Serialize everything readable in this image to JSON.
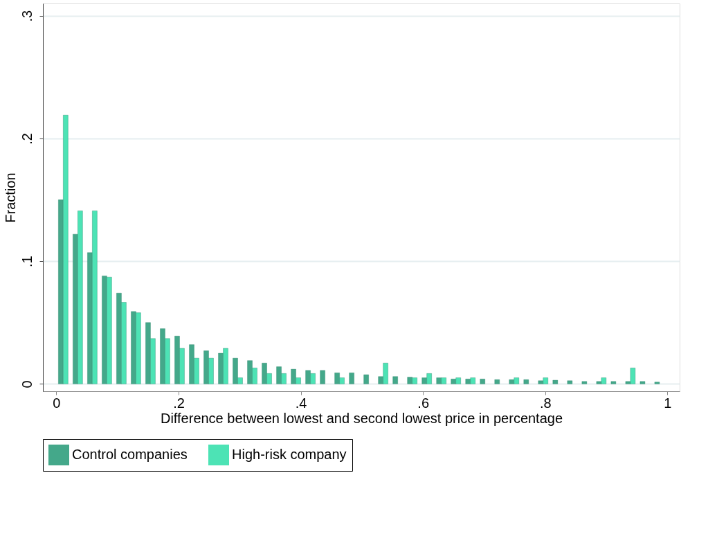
{
  "chart_data": {
    "type": "bar",
    "xlabel": "Difference between lowest and second lowest price in percentage",
    "ylabel": "Fraction",
    "xlim": [
      -0.022,
      1.02
    ],
    "ylim": [
      -0.006,
      0.31
    ],
    "xticks": [
      0,
      {
        "value": 0.2,
        "label": ".2"
      },
      {
        "value": 0.4,
        "label": ".4"
      },
      {
        "value": 0.6,
        "label": ".6"
      },
      {
        "value": 0.8,
        "label": ".8"
      },
      1
    ],
    "yticks": [
      0,
      {
        "value": 0.1,
        "label": ".1"
      },
      {
        "value": 0.2,
        "label": ".2"
      },
      {
        "value": 0.3,
        "label": ".3"
      }
    ],
    "grid": "y",
    "legend": "bottom",
    "series": [
      {
        "name": "Control companies",
        "color": "#44a88a",
        "x": [
          0.0073,
          0.0311,
          0.0549,
          0.0787,
          0.1025,
          0.1263,
          0.1501,
          0.1739,
          0.1977,
          0.2215,
          0.2453,
          0.2691,
          0.2929,
          0.3167,
          0.3405,
          0.3643,
          0.3881,
          0.4119,
          0.4357,
          0.4595,
          0.4833,
          0.5071,
          0.5309,
          0.5547,
          0.5785,
          0.6023,
          0.6261,
          0.6499,
          0.6737,
          0.6975,
          0.7213,
          0.7451,
          0.7689,
          0.7927,
          0.8165,
          0.8403,
          0.8641,
          0.8879,
          0.9117,
          0.9355,
          0.9593,
          0.9831
        ],
        "values": [
          0.15,
          0.122,
          0.107,
          0.088,
          0.074,
          0.059,
          0.05,
          0.045,
          0.039,
          0.032,
          0.027,
          0.025,
          0.021,
          0.019,
          0.017,
          0.014,
          0.012,
          0.011,
          0.011,
          0.009,
          0.009,
          0.0075,
          0.006,
          0.006,
          0.0055,
          0.005,
          0.005,
          0.004,
          0.004,
          0.004,
          0.0035,
          0.0035,
          0.0035,
          0.0026,
          0.003,
          0.0026,
          0.002,
          0.002,
          0.002,
          0.002,
          0.002,
          0.0015
        ]
      },
      {
        "name": "High-risk company",
        "color": "#4de3b5",
        "x": [
          0.0152,
          0.039,
          0.0628,
          0.0866,
          0.1104,
          0.1342,
          0.158,
          0.1818,
          0.2056,
          0.2294,
          0.2532,
          0.277,
          0.3008,
          0.3246,
          0.3484,
          0.3722,
          0.396,
          0.4198,
          0.4436,
          0.4674,
          0.4912,
          0.515,
          0.5388,
          0.5626,
          0.5864,
          0.6102,
          0.634,
          0.6578,
          0.6816,
          0.7054,
          0.7292,
          0.753,
          0.7768,
          0.8006,
          0.8244,
          0.8482,
          0.872,
          0.8958,
          0.9196,
          0.9434
        ],
        "values": [
          0.219,
          0.141,
          0.141,
          0.087,
          0.0665,
          0.058,
          0.037,
          0.037,
          0.029,
          0.021,
          0.021,
          0.029,
          0.005,
          0.013,
          0.0085,
          0.0085,
          0.005,
          0.0085,
          null,
          0.005,
          null,
          null,
          0.017,
          null,
          0.005,
          0.0085,
          0.005,
          0.005,
          0.005,
          null,
          null,
          0.005,
          null,
          0.005,
          null,
          null,
          null,
          0.005,
          null,
          0.013
        ]
      }
    ]
  }
}
